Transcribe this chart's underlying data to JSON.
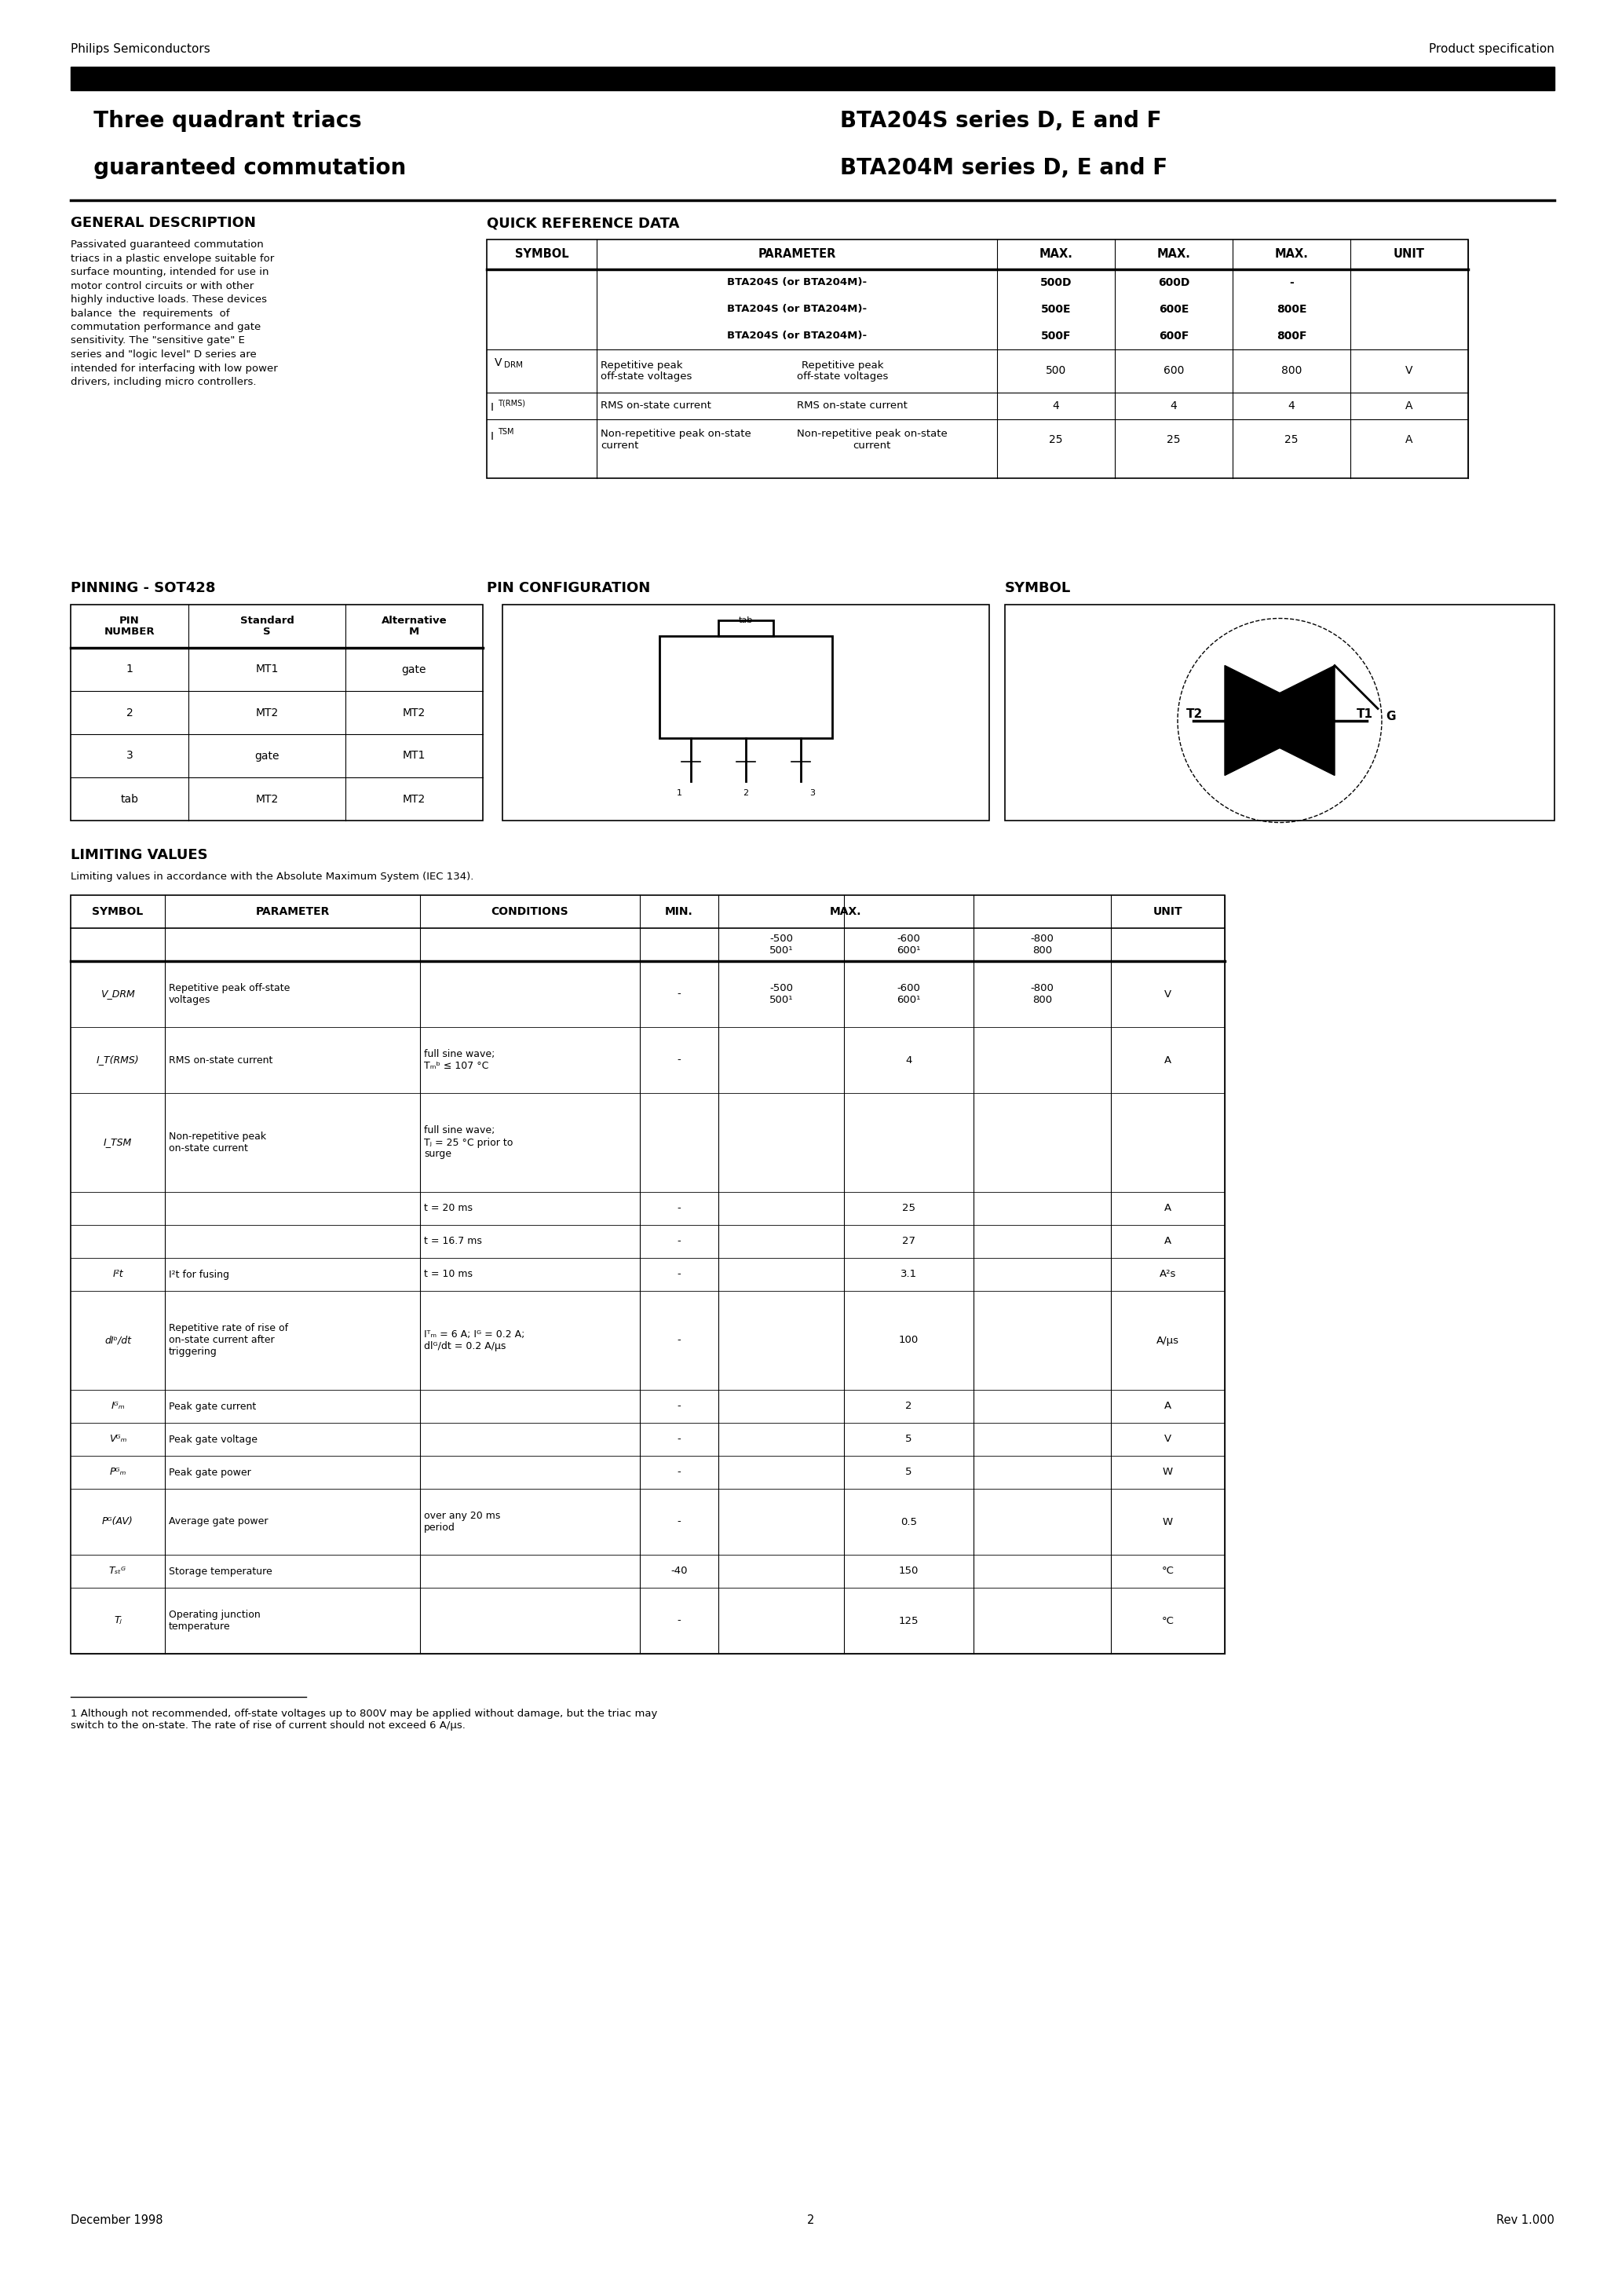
{
  "page_width": 20.66,
  "page_height": 29.24,
  "bg_color": "#ffffff",
  "header_left": "Philips Semiconductors",
  "header_right": "Product specification",
  "title_left_1": "  Three quadrant triacs",
  "title_left_2": "  guaranteed commutation",
  "title_right_1": "BTA204S series D, E and F",
  "title_right_2": "BTA204M series D, E and F",
  "sec1_title": "GENERAL DESCRIPTION",
  "sec2_title": "QUICK REFERENCE DATA",
  "sec3_title": "PINNING - SOT428",
  "sec4_title": "PIN CONFIGURATION",
  "sec5_title": "SYMBOL",
  "sec6_title": "LIMITING VALUES",
  "lv_note": "Limiting values in accordance with the Absolute Maximum System (IEC 134).",
  "footer_note": "1 Although not recommended, off-state voltages up to 800V may be applied without damage, but the triac may\nswitch to the on-state. The rate of rise of current should not exceed 6 A/μs.",
  "footer_date": "December 1998",
  "footer_page": "2",
  "footer_rev": "Rev 1.000",
  "desc_text": "Passivated guaranteed commutation\ntriacs in a plastic envelope suitable for\nsurface mounting, intended for use in\nmotor control circuits or with other\nhighly inductive loads. These devices\nbalance  the  requirements  of\ncommutation performance and gate\nsensitivity. The \"sensitive gate\" E\nseries and \"logic level\" D series are\nintended for interfacing with low power\ndrivers, including micro controllers."
}
